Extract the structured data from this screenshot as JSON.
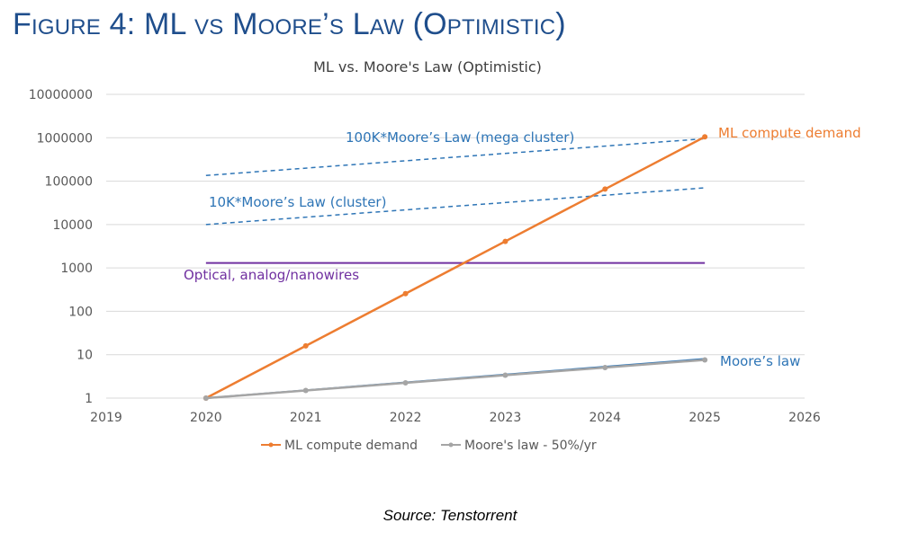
{
  "figure_title": "Figure 4: ML vs Moore’s Law (Optimistic)",
  "source": "Source: Tenstorrent",
  "colors": {
    "ml": "#ed7d31",
    "moore": "#a5a5a5",
    "moore_overlay": "#2e75b6",
    "guide": "#2e75b6",
    "optical": "#7030a0",
    "grid": "#d9d9d9",
    "axis_text": "#595959",
    "title_blue": "#1f4e8c"
  },
  "chart_data": {
    "type": "line",
    "title": "ML vs. Moore's Law (Optimistic)",
    "xlabel": "",
    "ylabel": "",
    "yscale": "log",
    "xlim": [
      2019,
      2026
    ],
    "ylim": [
      1,
      10000000
    ],
    "x_ticks": [
      "2019",
      "2020",
      "2021",
      "2022",
      "2023",
      "2024",
      "2025",
      "2026"
    ],
    "y_ticks": [
      "1",
      "10",
      "100",
      "1000",
      "10000",
      "100000",
      "1000000",
      "10000000"
    ],
    "series": [
      {
        "name": "ML compute demand",
        "x": [
          2020,
          2021,
          2022,
          2023,
          2024,
          2025
        ],
        "values": [
          1,
          16,
          256,
          4096,
          65536,
          1048576
        ]
      },
      {
        "name": "Moore's law - 50%/yr",
        "x": [
          2020,
          2021,
          2022,
          2023,
          2024,
          2025
        ],
        "values": [
          1,
          1.5,
          2.25,
          3.375,
          5.06,
          7.59
        ]
      }
    ],
    "annotations": {
      "moore_overlay": {
        "x": [
          2020,
          2025
        ],
        "values": [
          1,
          8
        ]
      },
      "cluster": {
        "label": "10K*Moore’s Law (cluster)",
        "x": [
          2020,
          2025
        ],
        "values": [
          10000,
          70000
        ]
      },
      "mega_cluster": {
        "label": "100K*Moore’s Law (mega cluster)",
        "x": [
          2020,
          2025
        ],
        "values": [
          135000,
          950000
        ]
      },
      "optical": {
        "label": "Optical, analog/nanowires",
        "x": [
          2020,
          2025
        ],
        "values": [
          1300,
          1300
        ]
      },
      "ml_label": "ML compute demand",
      "moore_label": "Moore’s law"
    },
    "legend": [
      "ML compute demand",
      "Moore's law - 50%/yr"
    ],
    "legend_position": "bottom",
    "grid": true
  }
}
